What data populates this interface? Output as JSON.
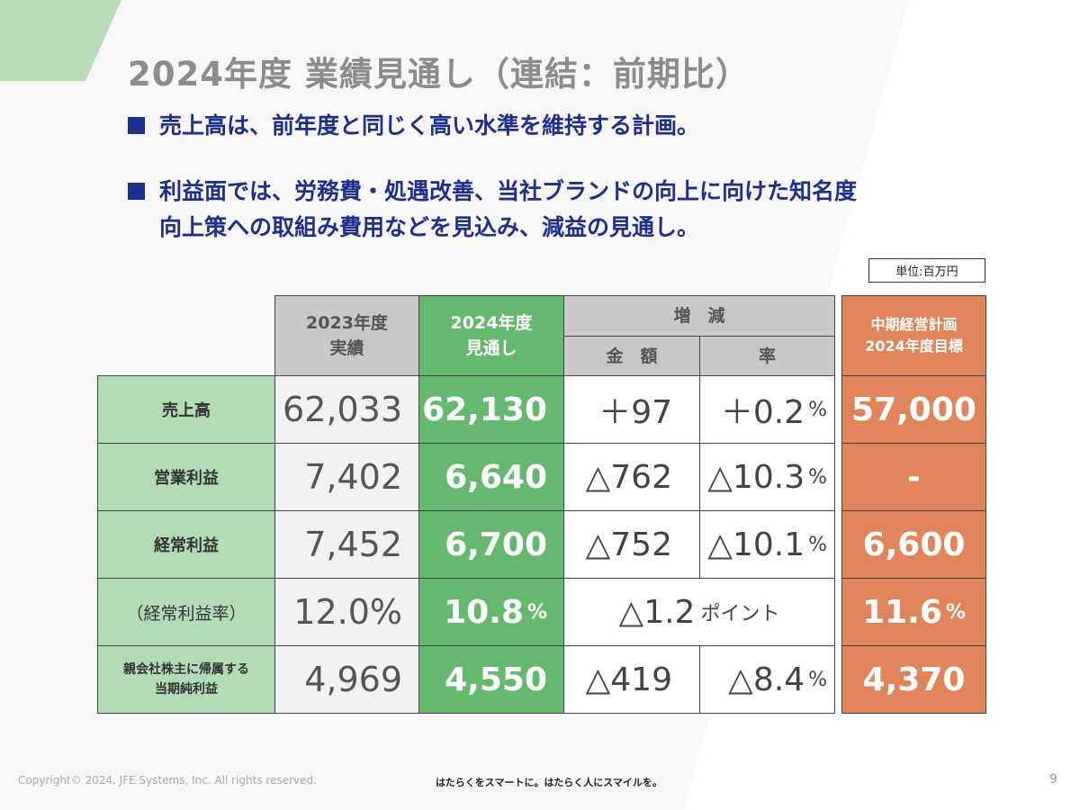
{
  "title": "2024年度 業績見通し（連結：前期比）",
  "bullets": [
    {
      "line1": "売上高は、前年度と同じく高い水準を維持する計画。",
      "line2": ""
    },
    {
      "line1": "利益面では、労務費・処遇改善、当社ブランドの向上に向けた知名度",
      "line2": "向上策への取組み費用などを見込み、減益の見通し。"
    }
  ],
  "unit_label": "単位:百万円",
  "headers": {
    "fy2023_line1": "2023年度",
    "fy2023_line2": "実績",
    "fy2024_line1": "2024年度",
    "fy2024_line2": "見通し",
    "change": "増　減",
    "amount": "金　額",
    "rate": "率",
    "plan_line1": "中期経営計画",
    "plan_line2": "2024年度目標"
  },
  "rows": [
    {
      "label": "売上高",
      "label2": "",
      "fy2023": "62,033",
      "fy2024": "62,130",
      "fy2024_pct": "",
      "amount": "＋97",
      "rate": "＋0.2",
      "rate_pct": "%",
      "plan": "57,000",
      "plan_pct": ""
    },
    {
      "label": "営業利益",
      "label2": "",
      "fy2023": "7,402",
      "fy2024": "6,640",
      "fy2024_pct": "",
      "amount": "△762",
      "rate": "△10.3",
      "rate_pct": "%",
      "plan": "-",
      "plan_pct": ""
    },
    {
      "label": "経常利益",
      "label2": "",
      "fy2023": "7,452",
      "fy2024": "6,700",
      "fy2024_pct": "",
      "amount": "△752",
      "rate": "△10.1",
      "rate_pct": "%",
      "plan": "6,600",
      "plan_pct": ""
    },
    {
      "label": "（経常利益率）",
      "label2": "",
      "fy2023": "12.0%",
      "fy2024": "10.8",
      "fy2024_pct": "%",
      "change_merged": "△1.2",
      "change_merged_suffix": "ポイント",
      "plan": "11.6",
      "plan_pct": "%"
    },
    {
      "label": "親会社株主に帰属する",
      "label2": "当期純利益",
      "fy2023": "4,969",
      "fy2024": "4,550",
      "fy2024_pct": "",
      "amount": "△419",
      "rate": "△8.4",
      "rate_pct": "%",
      "plan": "4,370",
      "plan_pct": ""
    }
  ],
  "footer": {
    "copyright": "Copyright© 2024. JFE Systems, Inc. All rights reserved.",
    "tagline": "はたらくをスマートに。はたらく人にスマイルを。",
    "page": "9"
  },
  "colors": {
    "green": "#65b96f",
    "light_green": "#b3dcb6",
    "orange": "#e2845a",
    "gray": "#c8c8c8",
    "navy": "#1f2f8f"
  }
}
